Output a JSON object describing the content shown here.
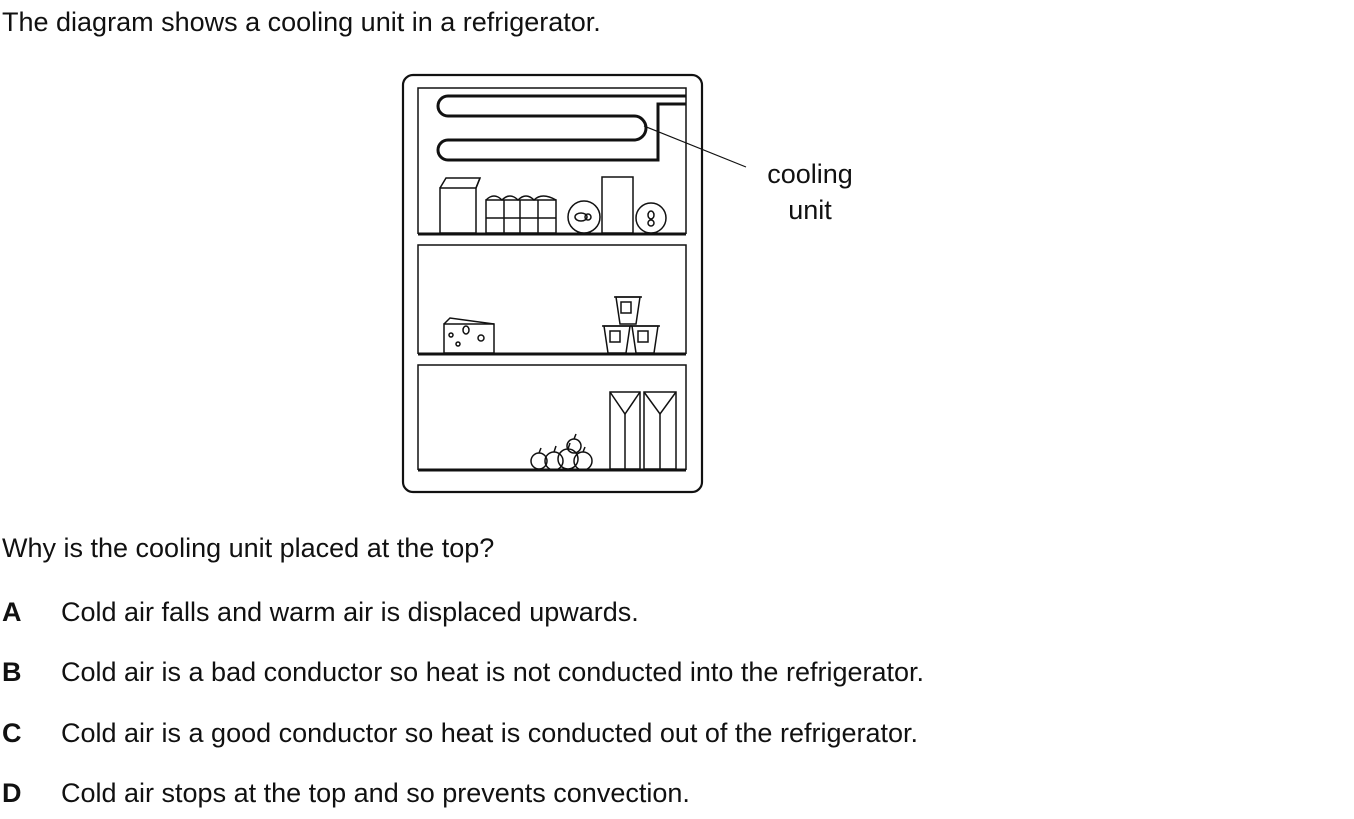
{
  "intro": "The diagram shows a cooling unit in a refrigerator.",
  "diagram": {
    "label_line1": "cooling",
    "label_line2": "unit"
  },
  "question": "Why is the cooling unit placed at the top?",
  "options": [
    {
      "letter": "A",
      "text": "Cold air falls and warm air is displaced upwards."
    },
    {
      "letter": "B",
      "text": "Cold air is a bad conductor so heat is not conducted into the refrigerator."
    },
    {
      "letter": "C",
      "text": "Cold air is a good conductor so heat is conducted out of the refrigerator."
    },
    {
      "letter": "D",
      "text": "Cold air stops at the top and so prevents convection."
    }
  ]
}
